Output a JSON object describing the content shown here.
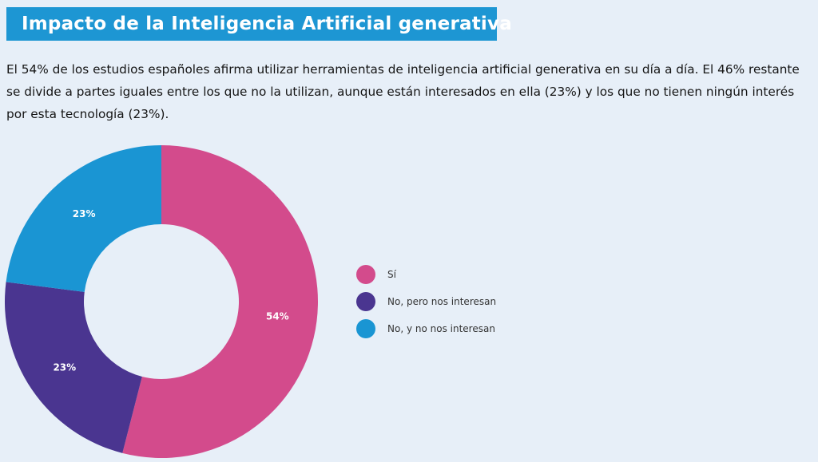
{
  "header": {
    "title": "Impacto de la Inteligencia Artificial generativa"
  },
  "intro": {
    "text": "El 54% de los estudios españoles afirma utilizar herramientas de inteligencia artificial generativa en su día a día. El 46% restante se divide a partes iguales entre los que no la utilizan, aunque están interesados en ella (23%) y los que no tienen ningún interés por esta tecnología (23%)."
  },
  "colors": {
    "title_band": "#1d96d3",
    "background": "#e7eff8"
  },
  "chart_data": {
    "type": "pie",
    "donut": true,
    "categories": [
      "Sí",
      "No, pero nos interesan",
      "No, y no nos interesan"
    ],
    "values": [
      54,
      23,
      23
    ],
    "labels": [
      "54%",
      "23%",
      "23%"
    ],
    "colors": [
      "#d34b8c",
      "#4a3590",
      "#1a95d3"
    ],
    "start_angle": "top (12 o'clock)",
    "direction": "clockwise",
    "legend_position": "right"
  }
}
